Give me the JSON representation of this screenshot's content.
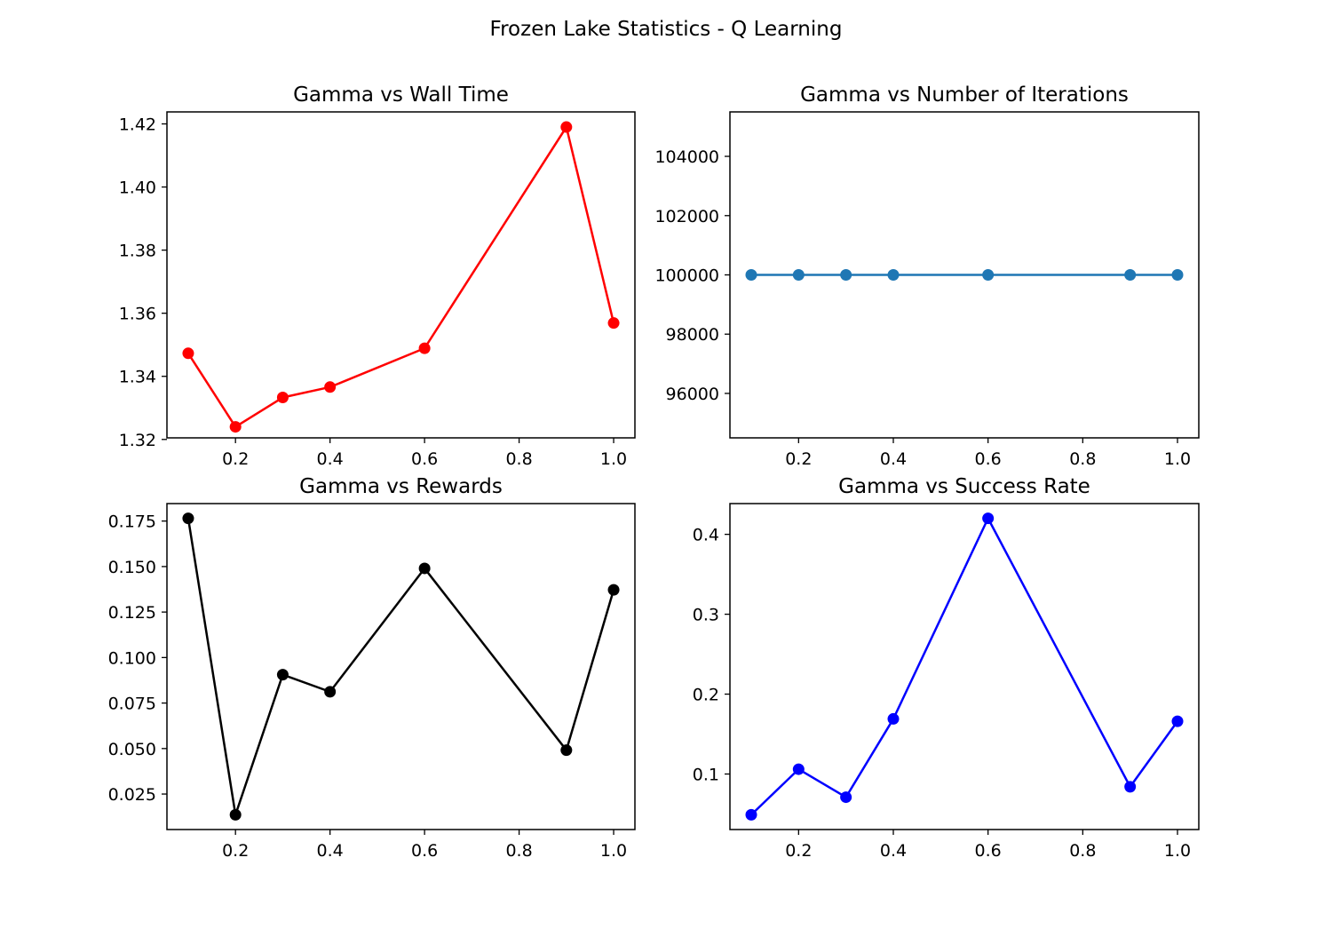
{
  "figure": {
    "suptitle": "Frozen Lake Statistics - Q Learning"
  },
  "chart_data": [
    {
      "type": "line",
      "title": "Gamma vs Wall Time",
      "xlabel": "",
      "ylabel": "",
      "color": "#ff0000",
      "marker": "circle",
      "x": [
        0.1,
        0.2,
        0.3,
        0.4,
        0.6,
        0.9,
        1.0
      ],
      "y": [
        1.3473,
        1.324,
        1.3333,
        1.3366,
        1.3489,
        1.419,
        1.3569
      ],
      "xlim": [
        0.055,
        1.045
      ],
      "ylim": [
        1.3205,
        1.4238
      ],
      "xticks": [
        0.2,
        0.4,
        0.6,
        0.8,
        1.0
      ],
      "xtick_labels": [
        "0.2",
        "0.4",
        "0.6",
        "0.8",
        "1.0"
      ],
      "yticks": [
        1.32,
        1.34,
        1.36,
        1.38,
        1.4,
        1.42
      ],
      "ytick_labels": [
        "1.32",
        "1.34",
        "1.36",
        "1.38",
        "1.40",
        "1.42"
      ],
      "grid": false
    },
    {
      "type": "line",
      "title": "Gamma vs Number of Iterations",
      "xlabel": "",
      "ylabel": "",
      "color": "#1f77b4",
      "marker": "circle",
      "x": [
        0.1,
        0.2,
        0.3,
        0.4,
        0.6,
        0.9,
        1.0
      ],
      "y": [
        100000,
        100000,
        100000,
        100000,
        100000,
        100000,
        100000
      ],
      "xlim": [
        0.055,
        1.045
      ],
      "ylim": [
        94500,
        105500
      ],
      "xticks": [
        0.2,
        0.4,
        0.6,
        0.8,
        1.0
      ],
      "xtick_labels": [
        "0.2",
        "0.4",
        "0.6",
        "0.8",
        "1.0"
      ],
      "yticks": [
        96000,
        98000,
        100000,
        102000,
        104000
      ],
      "ytick_labels": [
        "96000",
        "98000",
        "100000",
        "102000",
        "104000"
      ],
      "grid": false
    },
    {
      "type": "line",
      "title": "Gamma vs Rewards",
      "xlabel": "",
      "ylabel": "",
      "color": "#000000",
      "marker": "circle",
      "x": [
        0.1,
        0.2,
        0.3,
        0.4,
        0.6,
        0.9,
        1.0
      ],
      "y": [
        0.1765,
        0.0136,
        0.0906,
        0.0812,
        0.149,
        0.0491,
        0.1372
      ],
      "xlim": [
        0.055,
        1.045
      ],
      "ylim": [
        0.0055,
        0.1846
      ],
      "xticks": [
        0.2,
        0.4,
        0.6,
        0.8,
        1.0
      ],
      "xtick_labels": [
        "0.2",
        "0.4",
        "0.6",
        "0.8",
        "1.0"
      ],
      "yticks": [
        0.025,
        0.05,
        0.075,
        0.1,
        0.125,
        0.15,
        0.175
      ],
      "ytick_labels": [
        "0.025",
        "0.050",
        "0.075",
        "0.100",
        "0.125",
        "0.150",
        "0.175"
      ],
      "grid": false
    },
    {
      "type": "line",
      "title": "Gamma vs Success Rate",
      "xlabel": "",
      "ylabel": "",
      "color": "#0000ff",
      "marker": "circle",
      "x": [
        0.1,
        0.2,
        0.3,
        0.4,
        0.6,
        0.9,
        1.0
      ],
      "y": [
        0.049,
        0.106,
        0.071,
        0.169,
        0.42,
        0.084,
        0.166
      ],
      "xlim": [
        0.055,
        1.045
      ],
      "ylim": [
        0.0305,
        0.4385
      ],
      "xticks": [
        0.2,
        0.4,
        0.6,
        0.8,
        1.0
      ],
      "xtick_labels": [
        "0.2",
        "0.4",
        "0.6",
        "0.8",
        "1.0"
      ],
      "yticks": [
        0.1,
        0.2,
        0.3,
        0.4
      ],
      "ytick_labels": [
        "0.1",
        "0.2",
        "0.3",
        "0.4"
      ],
      "grid": false
    }
  ]
}
